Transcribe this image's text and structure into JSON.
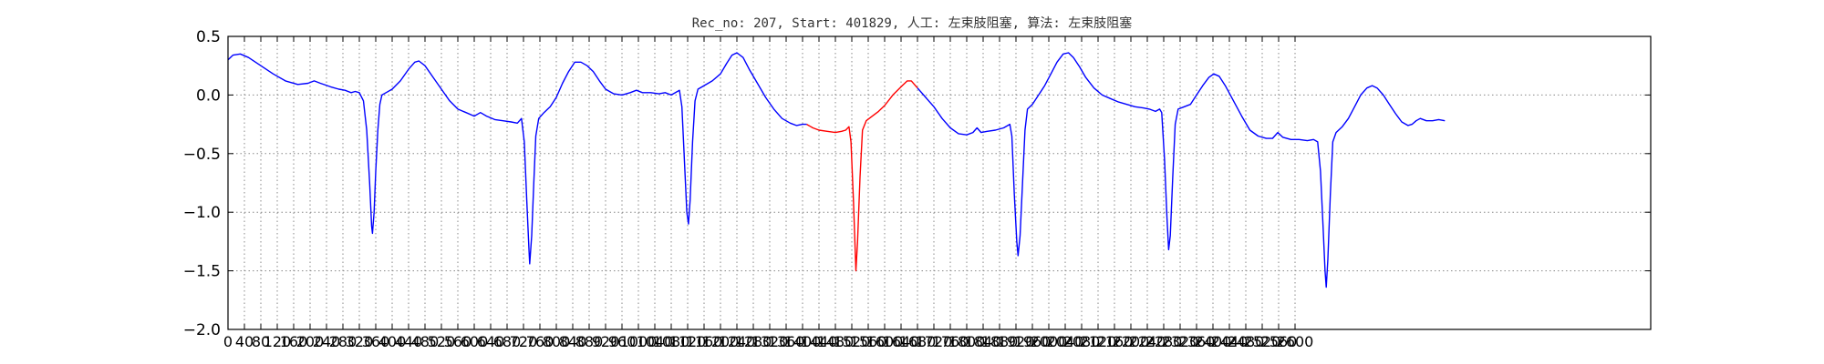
{
  "chart_data": {
    "type": "line",
    "title": "Rec_no: 207, Start: 401829, 人工: 左束肢阻塞, 算法: 左束肢阻塞",
    "xlabel": "",
    "ylabel": "",
    "xlim": [
      0,
      3060
    ],
    "ylim": [
      -2.0,
      0.5
    ],
    "grid": true,
    "yticks": [
      0.5,
      0.0,
      -0.5,
      -1.0,
      -1.5,
      -2.0
    ],
    "ytick_labels": [
      "0.5",
      "0.0",
      "−0.5",
      "−1.0",
      "−1.5",
      "−2.0"
    ],
    "xticks": [
      0,
      40,
      80,
      120,
      160,
      200,
      240,
      280,
      320,
      360,
      400,
      440,
      480,
      520,
      560,
      600,
      640,
      680,
      720,
      760,
      800,
      840,
      880,
      920,
      960,
      1000,
      1040,
      1080,
      1120,
      1160,
      1200,
      1240,
      1280,
      1320,
      1360,
      1400,
      1440,
      1480,
      1520,
      1560,
      1600,
      1640,
      1680,
      1720,
      1760,
      1800,
      1840,
      1880,
      1920,
      1960,
      2000,
      2040,
      2080,
      2120,
      2160,
      2200,
      2240,
      2280,
      2320,
      2360,
      2400,
      2440,
      2480,
      2520,
      2560,
      2600
    ],
    "colors": {
      "normal": "#0000ff",
      "highlight": "#ff0000"
    },
    "series": [
      {
        "color": "#0000ff",
        "points": [
          [
            0,
            0.3
          ],
          [
            12,
            0.34
          ],
          [
            30,
            0.35
          ],
          [
            50,
            0.32
          ],
          [
            80,
            0.25
          ],
          [
            110,
            0.18
          ],
          [
            140,
            0.12
          ],
          [
            170,
            0.09
          ],
          [
            195,
            0.1
          ],
          [
            210,
            0.12
          ],
          [
            225,
            0.1
          ],
          [
            250,
            0.07
          ],
          [
            270,
            0.05
          ],
          [
            285,
            0.04
          ],
          [
            300,
            0.02
          ],
          [
            310,
            0.03
          ],
          [
            320,
            0.02
          ],
          [
            330,
            -0.05
          ],
          [
            338,
            -0.3
          ],
          [
            345,
            -0.75
          ],
          [
            350,
            -1.12
          ],
          [
            352,
            -1.18
          ],
          [
            356,
            -1.0
          ],
          [
            360,
            -0.65
          ],
          [
            365,
            -0.3
          ],
          [
            370,
            -0.08
          ],
          [
            375,
            0.0
          ],
          [
            385,
            0.02
          ],
          [
            400,
            0.05
          ],
          [
            420,
            0.12
          ],
          [
            440,
            0.22
          ],
          [
            455,
            0.28
          ],
          [
            465,
            0.29
          ],
          [
            480,
            0.25
          ],
          [
            500,
            0.15
          ],
          [
            520,
            0.05
          ],
          [
            540,
            -0.05
          ],
          [
            560,
            -0.12
          ],
          [
            580,
            -0.15
          ],
          [
            600,
            -0.18
          ],
          [
            615,
            -0.15
          ],
          [
            630,
            -0.18
          ],
          [
            650,
            -0.21
          ],
          [
            670,
            -0.22
          ],
          [
            690,
            -0.23
          ],
          [
            705,
            -0.24
          ],
          [
            715,
            -0.2
          ],
          [
            722,
            -0.4
          ],
          [
            728,
            -0.9
          ],
          [
            733,
            -1.3
          ],
          [
            735,
            -1.44
          ],
          [
            740,
            -1.2
          ],
          [
            745,
            -0.75
          ],
          [
            750,
            -0.35
          ],
          [
            757,
            -0.2
          ],
          [
            770,
            -0.15
          ],
          [
            785,
            -0.1
          ],
          [
            800,
            -0.02
          ],
          [
            815,
            0.1
          ],
          [
            830,
            0.2
          ],
          [
            845,
            0.28
          ],
          [
            860,
            0.28
          ],
          [
            875,
            0.25
          ],
          [
            890,
            0.2
          ],
          [
            905,
            0.12
          ],
          [
            920,
            0.05
          ],
          [
            940,
            0.01
          ],
          [
            960,
            0.0
          ],
          [
            980,
            0.02
          ],
          [
            995,
            0.04
          ],
          [
            1010,
            0.02
          ],
          [
            1030,
            0.02
          ],
          [
            1050,
            0.01
          ],
          [
            1065,
            0.02
          ],
          [
            1080,
            0.0
          ],
          [
            1095,
            0.03
          ],
          [
            1100,
            0.04
          ],
          [
            1106,
            -0.1
          ],
          [
            1112,
            -0.55
          ],
          [
            1118,
            -1.0
          ],
          [
            1122,
            -1.1
          ],
          [
            1126,
            -0.9
          ],
          [
            1132,
            -0.4
          ],
          [
            1138,
            -0.05
          ],
          [
            1145,
            0.05
          ],
          [
            1160,
            0.08
          ],
          [
            1180,
            0.12
          ],
          [
            1200,
            0.18
          ],
          [
            1215,
            0.27
          ],
          [
            1228,
            0.34
          ],
          [
            1240,
            0.36
          ],
          [
            1255,
            0.32
          ],
          [
            1270,
            0.22
          ],
          [
            1290,
            0.1
          ],
          [
            1310,
            -0.02
          ],
          [
            1330,
            -0.12
          ],
          [
            1350,
            -0.2
          ],
          [
            1370,
            -0.24
          ],
          [
            1385,
            -0.26
          ],
          [
            1400,
            -0.25
          ],
          [
            1410,
            -0.25
          ]
        ]
      },
      {
        "color": "#ff0000",
        "points": [
          [
            1410,
            -0.25
          ],
          [
            1425,
            -0.28
          ],
          [
            1440,
            -0.3
          ],
          [
            1460,
            -0.31
          ],
          [
            1480,
            -0.32
          ],
          [
            1495,
            -0.31
          ],
          [
            1505,
            -0.3
          ],
          [
            1513,
            -0.27
          ],
          [
            1518,
            -0.4
          ],
          [
            1524,
            -0.9
          ],
          [
            1528,
            -1.3
          ],
          [
            1530,
            -1.5
          ],
          [
            1534,
            -1.25
          ],
          [
            1540,
            -0.7
          ],
          [
            1546,
            -0.3
          ],
          [
            1555,
            -0.22
          ],
          [
            1570,
            -0.18
          ],
          [
            1585,
            -0.14
          ],
          [
            1600,
            -0.09
          ],
          [
            1620,
            0.0
          ],
          [
            1640,
            0.07
          ],
          [
            1655,
            0.12
          ],
          [
            1665,
            0.12
          ],
          [
            1680,
            0.06
          ]
        ]
      },
      {
        "color": "#0000ff",
        "points": [
          [
            1680,
            0.06
          ],
          [
            1700,
            -0.02
          ],
          [
            1720,
            -0.1
          ],
          [
            1740,
            -0.2
          ],
          [
            1760,
            -0.28
          ],
          [
            1780,
            -0.33
          ],
          [
            1800,
            -0.34
          ],
          [
            1815,
            -0.32
          ],
          [
            1825,
            -0.28
          ],
          [
            1835,
            -0.32
          ],
          [
            1850,
            -0.31
          ],
          [
            1870,
            -0.3
          ],
          [
            1890,
            -0.28
          ],
          [
            1905,
            -0.25
          ],
          [
            1910,
            -0.35
          ],
          [
            1916,
            -0.85
          ],
          [
            1922,
            -1.25
          ],
          [
            1925,
            -1.37
          ],
          [
            1930,
            -1.2
          ],
          [
            1936,
            -0.75
          ],
          [
            1942,
            -0.3
          ],
          [
            1948,
            -0.12
          ],
          [
            1960,
            -0.08
          ],
          [
            1975,
            0.0
          ],
          [
            1990,
            0.08
          ],
          [
            2005,
            0.18
          ],
          [
            2020,
            0.28
          ],
          [
            2035,
            0.35
          ],
          [
            2048,
            0.36
          ],
          [
            2060,
            0.32
          ],
          [
            2075,
            0.24
          ],
          [
            2090,
            0.15
          ],
          [
            2110,
            0.06
          ],
          [
            2130,
            0.0
          ],
          [
            2150,
            -0.03
          ],
          [
            2170,
            -0.06
          ],
          [
            2190,
            -0.08
          ],
          [
            2210,
            -0.1
          ],
          [
            2230,
            -0.11
          ],
          [
            2245,
            -0.12
          ],
          [
            2260,
            -0.14
          ],
          [
            2270,
            -0.12
          ],
          [
            2275,
            -0.15
          ],
          [
            2282,
            -0.55
          ],
          [
            2288,
            -1.05
          ],
          [
            2292,
            -1.32
          ],
          [
            2296,
            -1.2
          ],
          [
            2302,
            -0.7
          ],
          [
            2308,
            -0.25
          ],
          [
            2315,
            -0.12
          ],
          [
            2330,
            -0.1
          ],
          [
            2345,
            -0.08
          ],
          [
            2360,
            0.0
          ],
          [
            2375,
            0.08
          ],
          [
            2390,
            0.15
          ],
          [
            2402,
            0.18
          ],
          [
            2415,
            0.16
          ],
          [
            2430,
            0.08
          ],
          [
            2450,
            -0.05
          ],
          [
            2470,
            -0.18
          ],
          [
            2490,
            -0.3
          ],
          [
            2510,
            -0.35
          ],
          [
            2530,
            -0.37
          ],
          [
            2545,
            -0.37
          ],
          [
            2558,
            -0.32
          ],
          [
            2570,
            -0.36
          ],
          [
            2590,
            -0.38
          ],
          [
            2610,
            -0.38
          ],
          [
            2630,
            -0.39
          ],
          [
            2645,
            -0.38
          ],
          [
            2655,
            -0.4
          ],
          [
            2662,
            -0.65
          ],
          [
            2668,
            -1.1
          ],
          [
            2673,
            -1.5
          ],
          [
            2676,
            -1.64
          ],
          [
            2680,
            -1.4
          ],
          [
            2686,
            -0.85
          ],
          [
            2692,
            -0.4
          ],
          [
            2700,
            -0.32
          ],
          [
            2715,
            -0.27
          ],
          [
            2730,
            -0.2
          ],
          [
            2745,
            -0.1
          ],
          [
            2760,
            0.0
          ],
          [
            2775,
            0.06
          ],
          [
            2788,
            0.08
          ],
          [
            2800,
            0.06
          ],
          [
            2815,
            0.0
          ],
          [
            2830,
            -0.08
          ],
          [
            2845,
            -0.16
          ],
          [
            2860,
            -0.23
          ],
          [
            2875,
            -0.26
          ],
          [
            2885,
            -0.25
          ],
          [
            2895,
            -0.22
          ],
          [
            2905,
            -0.2
          ],
          [
            2920,
            -0.22
          ],
          [
            2935,
            -0.22
          ],
          [
            2950,
            -0.21
          ],
          [
            2965,
            -0.22
          ]
        ]
      }
    ]
  }
}
